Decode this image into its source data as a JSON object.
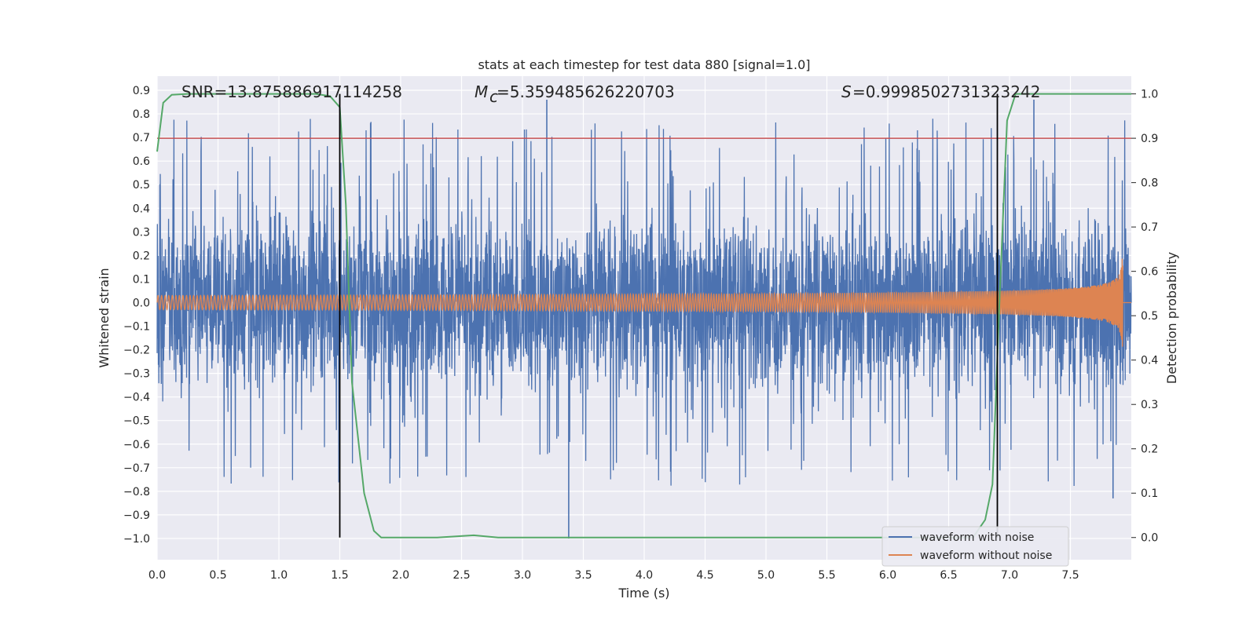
{
  "chart_data": {
    "type": "line",
    "title": "stats at each timestep for test data 880 [signal=1.0]",
    "xlabel": "Time (s)",
    "ylabel_left": "Whitened strain",
    "ylabel_right": "Detection probability",
    "xlim": [
      0.0,
      8.0
    ],
    "ylim_left": [
      -1.09,
      0.96
    ],
    "ylim_right": [
      -0.05,
      1.04
    ],
    "x_ticks": [
      "0.0",
      "0.5",
      "1.0",
      "1.5",
      "2.0",
      "2.5",
      "3.0",
      "3.5",
      "4.0",
      "4.5",
      "5.0",
      "5.5",
      "6.0",
      "6.5",
      "7.0",
      "7.5"
    ],
    "y_ticks_left": [
      "0.9",
      "0.8",
      "0.7",
      "0.6",
      "0.5",
      "0.4",
      "0.3",
      "0.2",
      "0.1",
      "0.0",
      "−0.1",
      "−0.2",
      "−0.3",
      "−0.4",
      "−0.5",
      "−0.6",
      "−0.7",
      "−0.8",
      "−0.9",
      "−1.0"
    ],
    "y_ticks_right": [
      "1.0",
      "0.9",
      "0.8",
      "0.7",
      "0.6",
      "0.5",
      "0.4",
      "0.3",
      "0.2",
      "0.1",
      "0.0"
    ],
    "grid": true,
    "legend_position": "lower-right",
    "annotations": {
      "snr": "SNR=13.875886917114258",
      "mc": "=5.359485626220703",
      "s": "=0.9998502731323242"
    },
    "threshold": 0.9,
    "vlines": [
      1.5,
      6.9
    ],
    "series": [
      {
        "name": "waveform with noise",
        "color": "#4c72b0",
        "axis": "left",
        "envelope": {
          "typical_amplitude": 0.42,
          "max": 0.86,
          "min": -1.0,
          "end_time": 8.0
        }
      },
      {
        "name": "waveform without noise",
        "color": "#dd8452",
        "axis": "left",
        "chirp": {
          "start_amplitude": 0.03,
          "peak_amplitude": 0.44,
          "peak_time": 7.93,
          "zero_after": 7.93
        }
      },
      {
        "color": "#55a868",
        "axis": "right",
        "x": [
          0.0,
          0.05,
          0.12,
          0.25,
          0.5,
          1.0,
          1.3,
          1.42,
          1.5,
          1.55,
          1.6,
          1.7,
          1.78,
          1.84,
          2.0,
          2.3,
          2.6,
          2.8,
          3.0,
          4.0,
          5.0,
          6.0,
          6.7,
          6.8,
          6.86,
          6.92,
          6.98,
          7.05,
          7.2,
          7.6,
          8.0
        ],
        "values": [
          0.87,
          0.98,
          0.998,
          1.0,
          1.0,
          1.0,
          1.0,
          0.995,
          0.97,
          0.75,
          0.35,
          0.1,
          0.015,
          0.0,
          0.0,
          0.0,
          0.005,
          0.0,
          0.0,
          0.0,
          0.0,
          0.0,
          0.0,
          0.04,
          0.12,
          0.55,
          0.94,
          1.0,
          1.0,
          1.0,
          1.0
        ]
      },
      {
        "color": "#c44e52",
        "axis": "right",
        "values": [
          0.9,
          0.9
        ]
      }
    ]
  }
}
